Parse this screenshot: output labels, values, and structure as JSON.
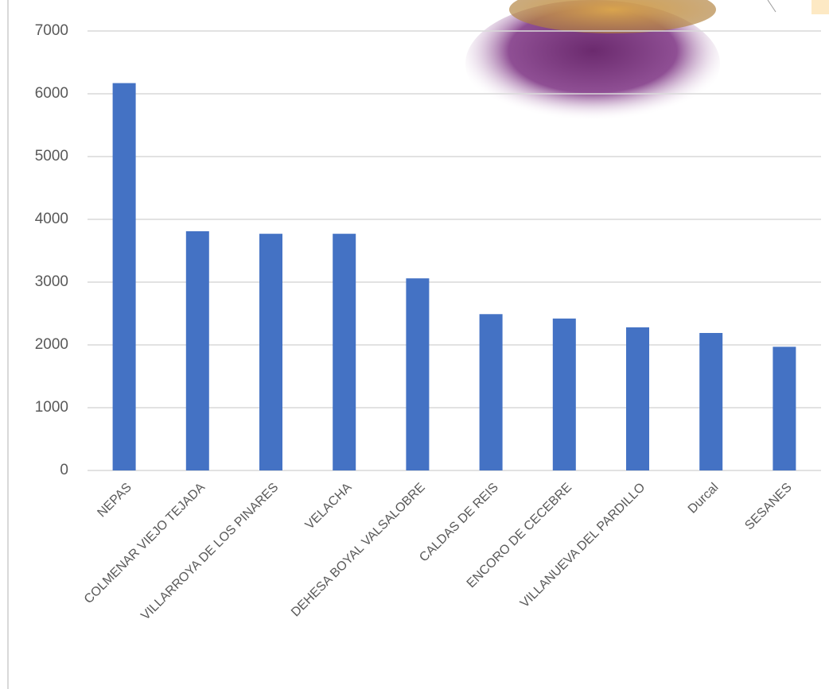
{
  "chart_data": {
    "type": "bar",
    "categories": [
      "NEPAS",
      "COLMENAR VIEJO TEJADA",
      "VILLARROYA DE LOS PINARES",
      "VELACHA",
      "DEHESA BOYAL VALSALOBRE",
      "CALDAS DE REIS",
      "ENCORO DE CECEBRE",
      "VILLANUEVA DEL PARDILLO",
      "Durcal",
      "SESANES"
    ],
    "values": [
      6170,
      3810,
      3770,
      3770,
      3060,
      2490,
      2420,
      2280,
      2190,
      1970
    ],
    "color": "#4472c4",
    "ylim": [
      0,
      7000
    ],
    "yticks": [
      0,
      1000,
      2000,
      3000,
      4000,
      5000,
      6000,
      7000
    ],
    "grid": true
  }
}
